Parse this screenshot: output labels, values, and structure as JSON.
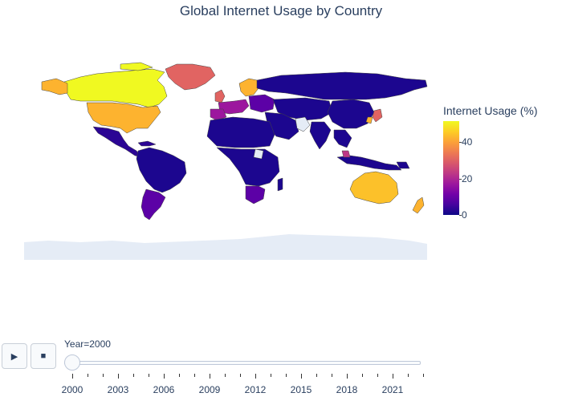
{
  "title": "Global Internet Usage by Country",
  "colorbar": {
    "title": "Internet Usage (%)",
    "ticks": [
      "40",
      "20",
      "0"
    ],
    "range": [
      0,
      50
    ],
    "colorscale": "plasma"
  },
  "controls": {
    "play_label": "▶",
    "stop_label": "■"
  },
  "slider": {
    "label": "Year=2000",
    "current": 2000,
    "years": [
      "2000",
      "2003",
      "2006",
      "2009",
      "2012",
      "2015",
      "2018",
      "2021"
    ]
  },
  "colors": {
    "ocean_land_default": "#e5ecf6",
    "high": "#f0f921",
    "mid_high": "#fdb32f",
    "mid": "#e16462",
    "low": "#0d0887"
  }
}
